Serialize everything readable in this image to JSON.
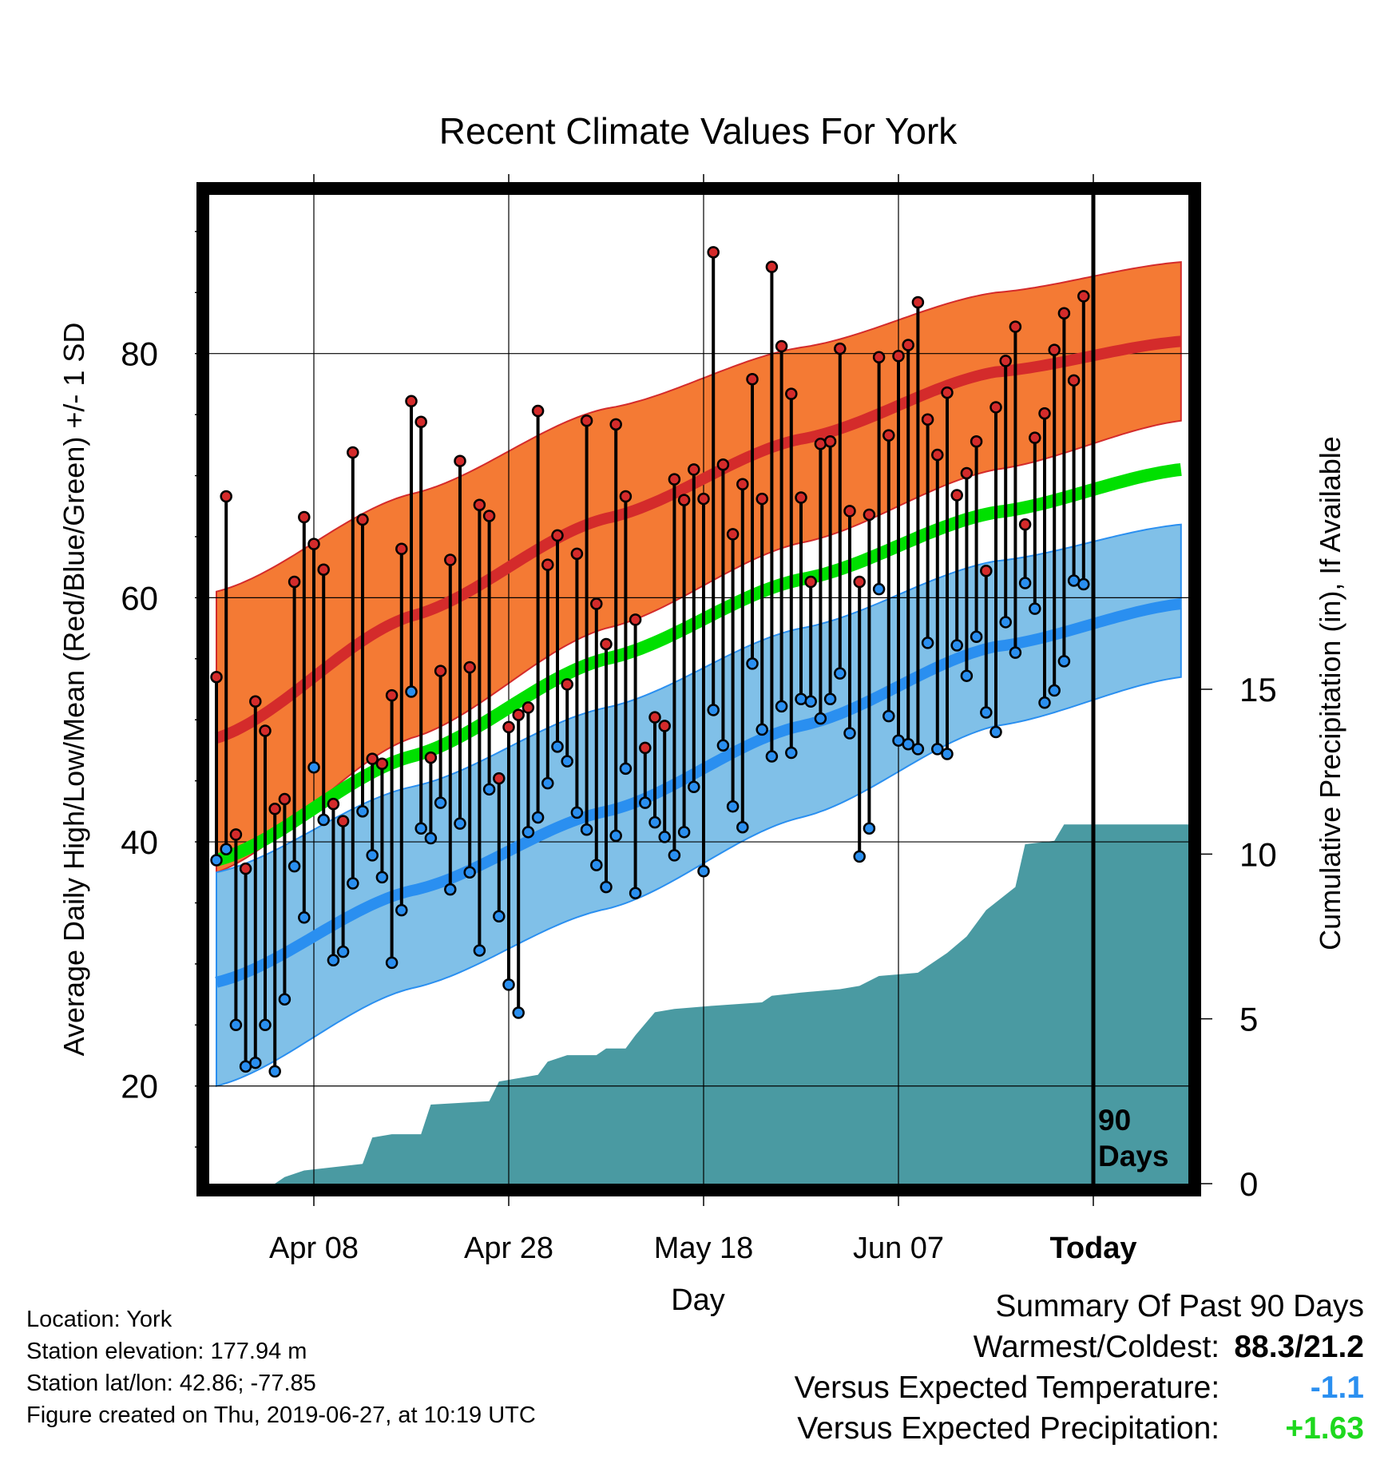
{
  "chart_data": {
    "type": "line",
    "title": "Recent Climate Values For York",
    "xlabel": "Day",
    "ylabel": "Average Daily High/Low/Mean (Red/Blue/Green) +/- 1 SD",
    "y2label": "Cumulative Precipitation (in), If Available",
    "ylim": [
      12,
      93
    ],
    "y2lim": [
      0,
      30
    ],
    "x_ticks": [
      {
        "day": 10,
        "label": "Apr 08"
      },
      {
        "day": 30,
        "label": "Apr 28"
      },
      {
        "day": 50,
        "label": "May 18"
      },
      {
        "day": 70,
        "label": "Jun 07"
      },
      {
        "day": 90,
        "label": "Today"
      }
    ],
    "y_ticks": [
      20,
      40,
      60,
      80
    ],
    "y2_ticks": [
      0,
      5,
      10,
      15
    ],
    "today_marker_label_1": "90",
    "today_marker_label_2": "Days",
    "colors": {
      "high_band": "#f47a34",
      "high_mean": "#d42b2b",
      "low_band": "#80c0e8",
      "low_mean": "#2a8ff0",
      "mean": "#00e000",
      "precip": "#4a9aa2",
      "high_dot": "#d42b2b",
      "low_dot": "#2a8ff0"
    },
    "normal_high_mean": [
      {
        "day": 0,
        "value": 48.5
      },
      {
        "day": 20,
        "value": 58.5
      },
      {
        "day": 40,
        "value": 66.5
      },
      {
        "day": 60,
        "value": 73.0
      },
      {
        "day": 80,
        "value": 78.5
      },
      {
        "day": 99,
        "value": 81.0
      }
    ],
    "normal_high_upper": [
      {
        "day": 0,
        "value": 60.5
      },
      {
        "day": 20,
        "value": 68.5
      },
      {
        "day": 40,
        "value": 75.5
      },
      {
        "day": 60,
        "value": 80.5
      },
      {
        "day": 80,
        "value": 85.0
      },
      {
        "day": 99,
        "value": 87.5
      }
    ],
    "normal_high_lower": [
      {
        "day": 0,
        "value": 37.5
      },
      {
        "day": 20,
        "value": 48.5
      },
      {
        "day": 40,
        "value": 57.5
      },
      {
        "day": 60,
        "value": 64.5
      },
      {
        "day": 80,
        "value": 70.5
      },
      {
        "day": 99,
        "value": 74.5
      }
    ],
    "normal_low_mean": [
      {
        "day": 0,
        "value": 28.5
      },
      {
        "day": 20,
        "value": 36.0
      },
      {
        "day": 40,
        "value": 42.5
      },
      {
        "day": 60,
        "value": 49.5
      },
      {
        "day": 80,
        "value": 56.0
      },
      {
        "day": 99,
        "value": 59.5
      }
    ],
    "normal_low_upper": [
      {
        "day": 0,
        "value": 37.5
      },
      {
        "day": 20,
        "value": 44.5
      },
      {
        "day": 40,
        "value": 51.0
      },
      {
        "day": 60,
        "value": 57.5
      },
      {
        "day": 80,
        "value": 63.0
      },
      {
        "day": 99,
        "value": 66.0
      }
    ],
    "normal_low_lower": [
      {
        "day": 0,
        "value": 20.0
      },
      {
        "day": 20,
        "value": 28.0
      },
      {
        "day": 40,
        "value": 34.5
      },
      {
        "day": 60,
        "value": 42.0
      },
      {
        "day": 80,
        "value": 49.5
      },
      {
        "day": 99,
        "value": 53.5
      }
    ],
    "normal_mean": [
      {
        "day": 0,
        "value": 38.5
      },
      {
        "day": 20,
        "value": 47.0
      },
      {
        "day": 40,
        "value": 55.0
      },
      {
        "day": 60,
        "value": 61.5
      },
      {
        "day": 80,
        "value": 67.0
      },
      {
        "day": 99,
        "value": 70.5
      }
    ],
    "daily": [
      [
        0,
        53.5,
        38.5
      ],
      [
        1,
        68.3,
        39.4
      ],
      [
        2,
        40.6,
        25.0
      ],
      [
        3,
        37.8,
        21.6
      ],
      [
        4,
        51.5,
        21.9
      ],
      [
        5,
        49.1,
        25.0
      ],
      [
        6,
        42.7,
        21.2
      ],
      [
        7,
        43.5,
        27.1
      ],
      [
        8,
        61.3,
        38.0
      ],
      [
        9,
        66.6,
        33.8
      ],
      [
        10,
        64.4,
        46.1
      ],
      [
        11,
        62.3,
        41.8
      ],
      [
        12,
        43.1,
        30.3
      ],
      [
        13,
        41.7,
        31.0
      ],
      [
        14,
        71.9,
        36.6
      ],
      [
        15,
        66.4,
        42.5
      ],
      [
        16,
        46.8,
        38.9
      ],
      [
        17,
        46.4,
        37.1
      ],
      [
        18,
        52.0,
        30.1
      ],
      [
        19,
        64.0,
        34.4
      ],
      [
        20,
        76.1,
        52.3
      ],
      [
        21,
        74.4,
        41.1
      ],
      [
        22,
        46.9,
        40.3
      ],
      [
        23,
        54.0,
        43.2
      ],
      [
        24,
        63.1,
        36.1
      ],
      [
        25,
        71.2,
        41.5
      ],
      [
        26,
        54.3,
        37.5
      ],
      [
        27,
        67.6,
        31.1
      ],
      [
        28,
        66.7,
        44.3
      ],
      [
        29,
        45.2,
        33.9
      ],
      [
        30,
        49.4,
        28.3
      ],
      [
        31,
        50.4,
        26.0
      ],
      [
        32,
        51.0,
        40.8
      ],
      [
        33,
        75.3,
        42.0
      ],
      [
        34,
        62.7,
        44.8
      ],
      [
        35,
        65.1,
        47.8
      ],
      [
        36,
        52.9,
        46.6
      ],
      [
        37,
        63.6,
        42.4
      ],
      [
        38,
        74.5,
        41.0
      ],
      [
        39,
        59.5,
        38.1
      ],
      [
        40,
        56.2,
        36.3
      ],
      [
        41,
        74.2,
        40.5
      ],
      [
        42,
        68.3,
        46.0
      ],
      [
        43,
        58.2,
        35.8
      ],
      [
        44,
        47.7,
        43.2
      ],
      [
        45,
        50.2,
        41.6
      ],
      [
        46,
        49.5,
        40.4
      ],
      [
        47,
        69.7,
        38.9
      ],
      [
        48,
        68.0,
        40.8
      ],
      [
        49,
        70.5,
        44.5
      ],
      [
        50,
        68.1,
        37.6
      ],
      [
        51,
        88.3,
        50.8
      ],
      [
        52,
        70.9,
        47.9
      ],
      [
        53,
        65.2,
        42.9
      ],
      [
        54,
        69.3,
        41.2
      ],
      [
        55,
        77.9,
        54.6
      ],
      [
        56,
        68.1,
        49.2
      ],
      [
        57,
        87.1,
        47.0
      ],
      [
        58,
        80.6,
        51.1
      ],
      [
        59,
        76.7,
        47.3
      ],
      [
        60,
        68.2,
        51.7
      ],
      [
        61,
        61.3,
        51.5
      ],
      [
        62,
        72.6,
        50.1
      ],
      [
        63,
        72.8,
        51.7
      ],
      [
        64,
        80.4,
        53.8
      ],
      [
        65,
        67.1,
        48.9
      ],
      [
        66,
        61.3,
        38.8
      ],
      [
        67,
        66.8,
        41.1
      ],
      [
        68,
        79.7,
        60.7
      ],
      [
        69,
        73.3,
        50.3
      ],
      [
        70,
        79.8,
        48.3
      ],
      [
        71,
        80.7,
        48.0
      ],
      [
        72,
        84.2,
        47.6
      ],
      [
        73,
        74.6,
        56.3
      ],
      [
        74,
        71.7,
        47.6
      ],
      [
        75,
        76.8,
        47.2
      ],
      [
        76,
        68.4,
        56.1
      ],
      [
        77,
        70.2,
        53.6
      ],
      [
        78,
        72.8,
        56.8
      ],
      [
        79,
        62.2,
        50.6
      ],
      [
        80,
        75.6,
        49.0
      ],
      [
        81,
        79.4,
        58.0
      ],
      [
        82,
        82.2,
        55.5
      ],
      [
        83,
        66.0,
        61.2
      ],
      [
        84,
        73.1,
        59.1
      ],
      [
        85,
        75.1,
        51.4
      ],
      [
        86,
        80.3,
        52.4
      ],
      [
        87,
        83.3,
        54.8
      ],
      [
        88,
        77.8,
        61.4
      ],
      [
        89,
        84.7,
        61.1
      ]
    ],
    "precip_cumulative": [
      {
        "day": 0,
        "value": 0.0
      },
      {
        "day": 6,
        "value": 0.0
      },
      {
        "day": 7,
        "value": 0.2
      },
      {
        "day": 9,
        "value": 0.4
      },
      {
        "day": 12,
        "value": 0.5
      },
      {
        "day": 15,
        "value": 0.6
      },
      {
        "day": 16,
        "value": 1.4
      },
      {
        "day": 18,
        "value": 1.5
      },
      {
        "day": 21,
        "value": 1.5
      },
      {
        "day": 22,
        "value": 2.4
      },
      {
        "day": 28,
        "value": 2.5
      },
      {
        "day": 29,
        "value": 3.1
      },
      {
        "day": 33,
        "value": 3.3
      },
      {
        "day": 34,
        "value": 3.7
      },
      {
        "day": 36,
        "value": 3.9
      },
      {
        "day": 39,
        "value": 3.9
      },
      {
        "day": 40,
        "value": 4.1
      },
      {
        "day": 42,
        "value": 4.1
      },
      {
        "day": 43,
        "value": 4.5
      },
      {
        "day": 45,
        "value": 5.2
      },
      {
        "day": 47,
        "value": 5.3
      },
      {
        "day": 51,
        "value": 5.4
      },
      {
        "day": 56,
        "value": 5.5
      },
      {
        "day": 57,
        "value": 5.7
      },
      {
        "day": 60,
        "value": 5.8
      },
      {
        "day": 64,
        "value": 5.9
      },
      {
        "day": 66,
        "value": 6.0
      },
      {
        "day": 68,
        "value": 6.3
      },
      {
        "day": 72,
        "value": 6.4
      },
      {
        "day": 73,
        "value": 6.6
      },
      {
        "day": 75,
        "value": 7.0
      },
      {
        "day": 77,
        "value": 7.5
      },
      {
        "day": 79,
        "value": 8.3
      },
      {
        "day": 82,
        "value": 9.0
      },
      {
        "day": 83,
        "value": 10.3
      },
      {
        "day": 86,
        "value": 10.4
      },
      {
        "day": 87,
        "value": 10.9
      },
      {
        "day": 99,
        "value": 10.9
      }
    ]
  },
  "info": {
    "location": "Location: York",
    "elevation": "Station elevation: 177.94 m",
    "latlon": "Station lat/lon: 42.86; -77.85",
    "created": "Figure created on Thu, 2019-06-27, at 10:19 UTC"
  },
  "summary": {
    "heading": "Summary Of Past 90 Days",
    "warm_cold_label": "Warmest/Coldest:",
    "warm_cold_value": "88.3/21.2",
    "temp_label": "Versus Expected Temperature:",
    "temp_value": "-1.1",
    "temp_color": "#2a8ff0",
    "precip_label": "Versus Expected Precipitation:",
    "precip_value": "+1.63",
    "precip_color": "#1ed81e"
  }
}
